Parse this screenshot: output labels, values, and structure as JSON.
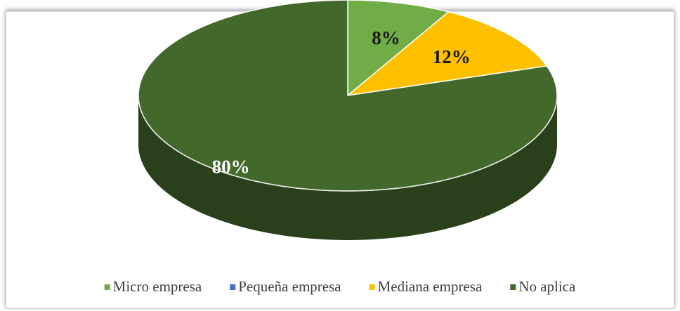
{
  "chart_data": {
    "type": "pie",
    "categories": [
      "Micro empresa",
      "Pequeña empresa",
      "Mediana empresa",
      "No aplica"
    ],
    "values": [
      8,
      0,
      12,
      80
    ],
    "value_labels": [
      "8%",
      null,
      "12%",
      "80%"
    ],
    "colors": [
      "#70ad47",
      "#4472c4",
      "#ffc000",
      "#43682b"
    ],
    "legend": "bottom"
  }
}
